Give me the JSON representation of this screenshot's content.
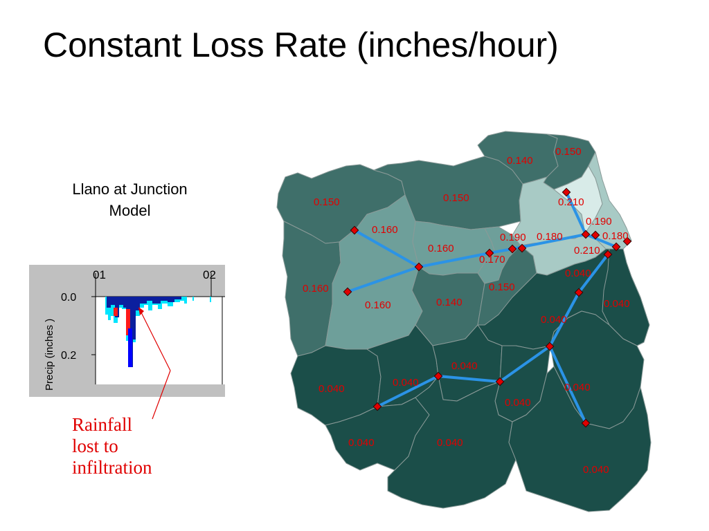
{
  "slide": {
    "title": "Constant Loss Rate (inches/hour)",
    "model_label_line1": "Llano at Junction",
    "model_label_line2": "Model",
    "callout_line1": "Rainfall",
    "callout_line2": "lost to",
    "callout_line3": "infiltration"
  },
  "graph": {
    "x_tick_1": "01",
    "x_tick_2": "02",
    "y_axis_label": "Precip (inches  )",
    "y_tick_1": "0.0",
    "y_tick_2": "0.2"
  },
  "map": {
    "subbasin_labels": [
      "0.150",
      "0.150",
      "0.140",
      "0.150",
      "0.210",
      "0.160",
      "0.160",
      "0.190",
      "0.180",
      "0.190",
      "0.180",
      "0.170",
      "0.210",
      "0.160",
      "0.160",
      "0.140",
      "0.150",
      "0.040",
      "0.040",
      "0.040",
      "0.040",
      "0.040",
      "0.040",
      "0.040",
      "0.040",
      "0.040",
      "0.040",
      "0.040"
    ],
    "colors": {
      "dark": "#1b4e49",
      "medium": "#3f6f6a",
      "light": "#6e9f9a",
      "pale": "#a8cac5",
      "palest": "#d8ebe8",
      "reach": "#2b93e6",
      "junction": "#e00000",
      "label": "#e00000"
    }
  }
}
